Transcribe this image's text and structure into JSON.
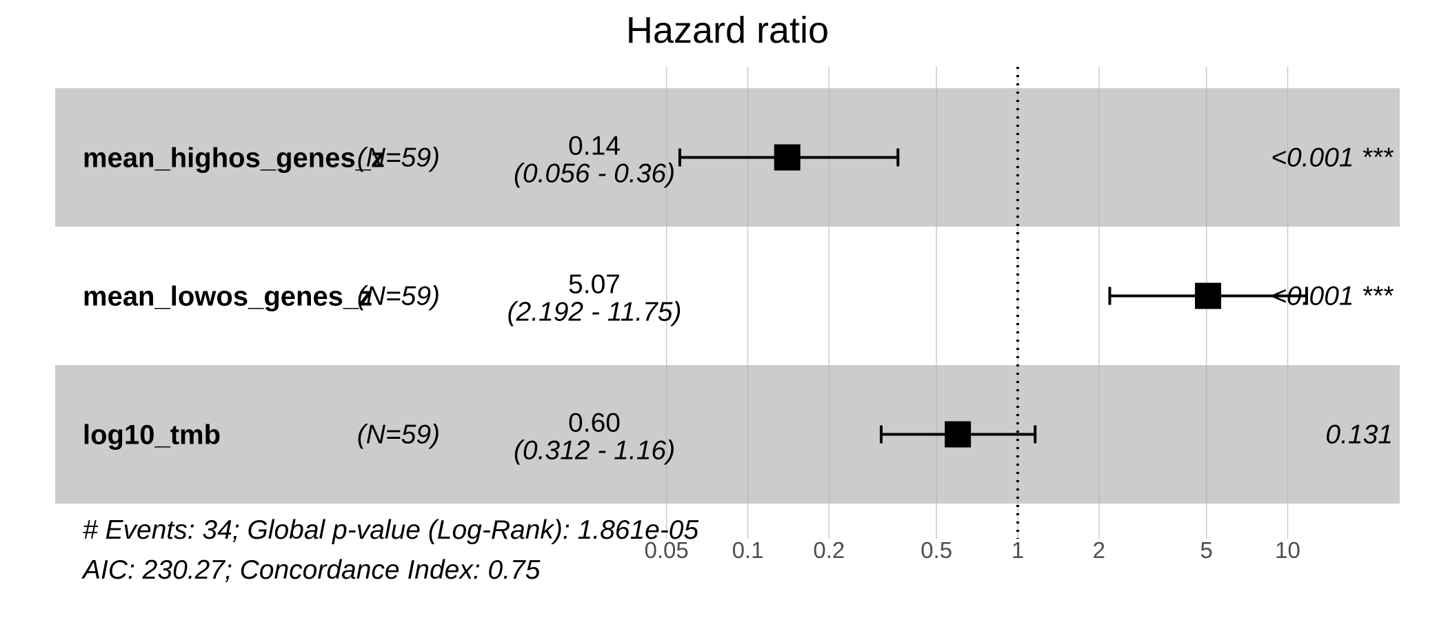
{
  "chart_data": {
    "type": "forest",
    "title": "Hazard ratio",
    "x_scale": "log",
    "xlim": [
      0.05,
      20
    ],
    "x_ticks": [
      0.05,
      0.1,
      0.2,
      0.5,
      1,
      2,
      5,
      10
    ],
    "x_tick_labels": [
      "0.05",
      "0.1",
      "0.2",
      "0.5",
      "1",
      "2",
      "5",
      "10"
    ],
    "reference_line": 1,
    "rows": [
      {
        "variable": "mean_highos_genes_z",
        "n_label": "(N=59)",
        "hr": 0.14,
        "lower": 0.056,
        "upper": 0.36,
        "hr_text": "0.14",
        "ci_text": "(0.056 -  0.36)",
        "p_text": "<0.001 ***",
        "shaded": true
      },
      {
        "variable": "mean_lowos_genes_z",
        "n_label": "(N=59)",
        "hr": 5.07,
        "lower": 2.192,
        "upper": 11.75,
        "hr_text": "5.07",
        "ci_text": "(2.192 - 11.75)",
        "p_text": "<0.001 ***",
        "shaded": false
      },
      {
        "variable": "log10_tmb",
        "n_label": "(N=59)",
        "hr": 0.6,
        "lower": 0.312,
        "upper": 1.16,
        "hr_text": "0.60",
        "ci_text": "(0.312 -  1.16)",
        "p_text": "0.131",
        "shaded": true
      }
    ],
    "footnotes": [
      "# Events: 34; Global p-value (Log-Rank): 1.861e-05",
      "AIC: 230.27; Concordance Index: 0.75"
    ],
    "colors": {
      "shade": "#cccccc",
      "grid": "#b3b3b3",
      "tick_text": "#4d4d4d",
      "marker": "#000000"
    }
  }
}
